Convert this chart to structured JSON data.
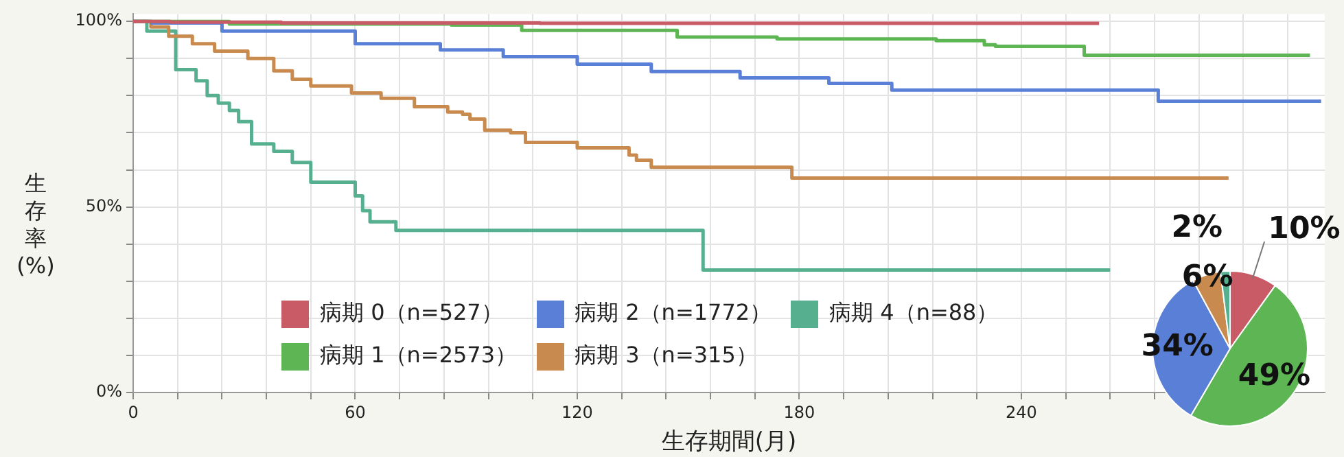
{
  "chart_data": [
    {
      "type": "step",
      "xlabel": "生存期間(月)",
      "ylabel": "生存率(%)",
      "xlim": [
        0,
        322
      ],
      "ylim": [
        0,
        102
      ],
      "xticks": [
        0,
        {
          "value": 12,
          "label": null
        },
        {
          "value": 24,
          "label": null
        },
        {
          "value": 36,
          "label": null
        },
        {
          "value": 48,
          "label": null
        },
        60,
        {
          "value": 72,
          "label": null
        },
        {
          "value": 84,
          "label": null
        },
        {
          "value": 96,
          "label": null
        },
        {
          "value": 108,
          "label": null
        },
        120,
        {
          "value": 132,
          "label": null
        },
        {
          "value": 144,
          "label": null
        },
        {
          "value": 156,
          "label": null
        },
        {
          "value": 168,
          "label": null
        },
        180,
        {
          "value": 192,
          "label": null
        },
        {
          "value": 204,
          "label": null
        },
        {
          "value": 216,
          "label": null
        },
        {
          "value": 228,
          "label": null
        },
        240,
        {
          "value": 252,
          "label": null
        },
        {
          "value": 264,
          "label": null
        },
        {
          "value": 276,
          "label": null
        },
        {
          "value": 288,
          "label": null
        },
        {
          "value": 300,
          "label": null
        },
        {
          "value": 312,
          "label": null
        }
      ],
      "yticks": [
        {
          "value": 0,
          "label": "0%"
        },
        {
          "value": 10,
          "label": null
        },
        {
          "value": 20,
          "label": null
        },
        {
          "value": 30,
          "label": null
        },
        {
          "value": 40,
          "label": null
        },
        {
          "value": 50,
          "label": "50%"
        },
        {
          "value": 60,
          "label": null
        },
        {
          "value": 70,
          "label": null
        },
        {
          "value": 80,
          "label": null
        },
        {
          "value": 90,
          "label": null
        },
        {
          "value": 100,
          "label": "100%"
        }
      ],
      "grid": true,
      "legend": "bottom",
      "series": [
        {
          "name": "病期 0（n=527）",
          "color": "#c95b66",
          "x": [
            0,
            10,
            40,
            110,
            261
          ],
          "values": [
            100,
            99.8,
            99.6,
            99.5,
            99.5
          ]
        },
        {
          "name": "病期 1（n=2573）",
          "color": "#5db653",
          "x": [
            0,
            26,
            86,
            105,
            147,
            174,
            217,
            230,
            233,
            257,
            318
          ],
          "values": [
            100,
            99.3,
            99,
            97.6,
            95.8,
            95.3,
            94.8,
            93.7,
            93.3,
            90.9,
            90.9
          ]
        },
        {
          "name": "病期 2（n=1772）",
          "color": "#5a7fd6",
          "x": [
            0,
            5,
            24,
            60,
            83,
            100,
            120,
            140,
            164,
            188,
            205,
            277,
            321
          ],
          "values": [
            100,
            99.6,
            97.4,
            94,
            92.3,
            90.5,
            88.5,
            86.5,
            84.8,
            83.3,
            81.5,
            78.5,
            78.5
          ]
        },
        {
          "name": "病期 3（n=315）",
          "color": "#c98a4f",
          "x": [
            0,
            4.8,
            9.6,
            16,
            22,
            31,
            38,
            43,
            48,
            59,
            67,
            76,
            85,
            89,
            91,
            95,
            102,
            106,
            120,
            134,
            136,
            140,
            178,
            296
          ],
          "values": [
            100,
            98.5,
            96,
            94,
            92,
            90,
            86.7,
            84.4,
            82.6,
            80.7,
            79.3,
            77,
            75.6,
            75,
            73.7,
            70.7,
            70,
            67.4,
            65.9,
            64,
            62.6,
            60.7,
            57.8,
            57.8
          ]
        },
        {
          "name": "病期 4（n=88）",
          "color": "#56b08f",
          "x": [
            0,
            3.7,
            11.5,
            17,
            20,
            23,
            26,
            28.5,
            32,
            38,
            43,
            48,
            60,
            62,
            64,
            71,
            154,
            264
          ],
          "values": [
            100,
            97.4,
            87,
            84,
            80,
            78,
            76,
            73,
            67,
            65,
            62,
            56.7,
            53,
            49,
            46,
            43.7,
            33,
            33
          ]
        }
      ]
    },
    {
      "type": "pie",
      "categories": [
        null,
        null,
        null,
        null,
        null
      ],
      "values": [
        10,
        49,
        34,
        6,
        2
      ],
      "colors": [
        "#c95b66",
        "#5db653",
        "#5a7fd6",
        "#c98a4f",
        "#56b08f"
      ],
      "value_labels": [
        "10%",
        "49%",
        "34%",
        "6%",
        "2%"
      ]
    }
  ]
}
